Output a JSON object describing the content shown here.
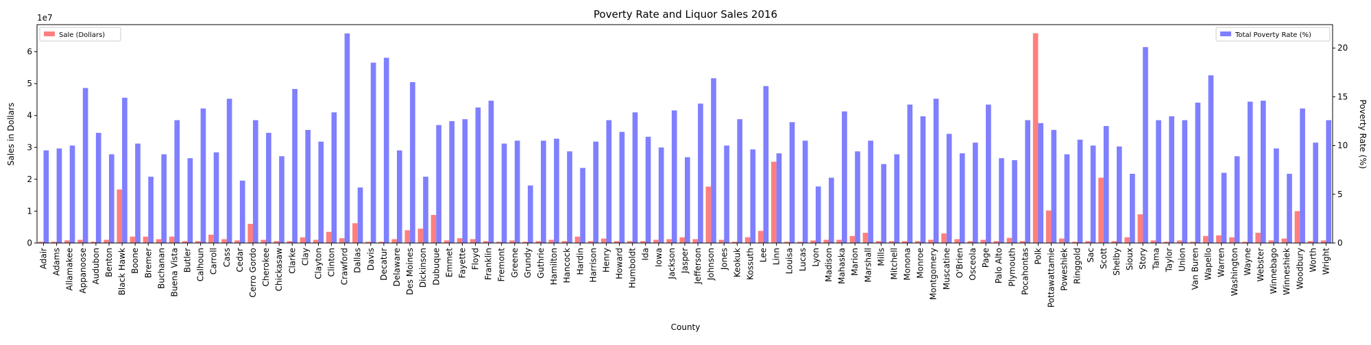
{
  "chart_data": {
    "type": "bar",
    "title": "Poverty Rate and Liquor Sales 2016",
    "xlabel": "County",
    "ylabel_left": "Sales in Dollars",
    "ylabel_right": "Poverty Rate (%)",
    "left_axis_exponent": "1e7",
    "ylim_left": [
      0,
      6.85
    ],
    "ylim_right": [
      0,
      22.4
    ],
    "yticks_left": [
      0,
      1,
      2,
      3,
      4,
      5,
      6
    ],
    "yticks_right": [
      0,
      5,
      10,
      15,
      20
    ],
    "grid": false,
    "legend_sales_position": "upper-left",
    "legend_poverty_position": "upper-right",
    "categories": [
      "Adair",
      "Adams",
      "Allamakee",
      "Appanoose",
      "Audubon",
      "Benton",
      "Black Hawk",
      "Boone",
      "Bremer",
      "Buchanan",
      "Buena Vista",
      "Butler",
      "Calhoun",
      "Carroll",
      "Cass",
      "Cedar",
      "Cerro Gordo",
      "Cherokee",
      "Chickasaw",
      "Clarke",
      "Clay",
      "Clayton",
      "Clinton",
      "Crawford",
      "Dallas",
      "Davis",
      "Decatur",
      "Delaware",
      "Des Moines",
      "Dickinson",
      "Dubuque",
      "Emmet",
      "Fayette",
      "Floyd",
      "Franklin",
      "Fremont",
      "Greene",
      "Grundy",
      "Guthrie",
      "Hamilton",
      "Hancock",
      "Hardin",
      "Harrison",
      "Henry",
      "Howard",
      "Humboldt",
      "Ida",
      "Iowa",
      "Jackson",
      "Jasper",
      "Jefferson",
      "Johnson",
      "Jones",
      "Keokuk",
      "Kossuth",
      "Lee",
      "Linn",
      "Louisa",
      "Lucas",
      "Lyon",
      "Madison",
      "Mahaska",
      "Marion",
      "Marshall",
      "Mills",
      "Mitchell",
      "Monona",
      "Monroe",
      "Montgomery",
      "Muscatine",
      "O'Brien",
      "Osceola",
      "Page",
      "Palo Alto",
      "Plymouth",
      "Pocahontas",
      "Polk",
      "Pottawattamie",
      "Poweshiek",
      "Ringgold",
      "Sac",
      "Scott",
      "Shelby",
      "Sioux",
      "Story",
      "Tama",
      "Taylor",
      "Union",
      "Van Buren",
      "Wapello",
      "Warren",
      "Washington",
      "Wayne",
      "Webster",
      "Winnebago",
      "Winneshiek",
      "Woodbury",
      "Worth",
      "Wright"
    ],
    "series": [
      {
        "name": "Sale (Dollars)",
        "color": "#ff7f7f",
        "axis": "left",
        "values": [
          0.04,
          0.04,
          0.08,
          0.1,
          0.04,
          0.1,
          1.68,
          0.2,
          0.2,
          0.12,
          0.2,
          0.06,
          0.06,
          0.26,
          0.12,
          0.08,
          0.6,
          0.1,
          0.06,
          0.06,
          0.18,
          0.1,
          0.35,
          0.15,
          0.62,
          0.04,
          0.04,
          0.12,
          0.4,
          0.45,
          0.88,
          0.08,
          0.15,
          0.12,
          0.06,
          0.04,
          0.08,
          0.04,
          0.06,
          0.1,
          0.06,
          0.2,
          0.06,
          0.14,
          0.06,
          0.06,
          0.06,
          0.1,
          0.12,
          0.18,
          0.12,
          1.77,
          0.1,
          0.04,
          0.18,
          0.38,
          2.55,
          0.04,
          0.04,
          0.08,
          0.1,
          0.1,
          0.22,
          0.32,
          0.06,
          0.06,
          0.06,
          0.06,
          0.1,
          0.3,
          0.12,
          0.06,
          0.1,
          0.06,
          0.16,
          0.06,
          6.58,
          1.02,
          0.14,
          0.04,
          0.06,
          2.05,
          0.06,
          0.18,
          0.9,
          0.08,
          0.04,
          0.08,
          0.04,
          0.22,
          0.24,
          0.18,
          0.04,
          0.32,
          0.08,
          0.14,
          1.0,
          0.06,
          0.08
        ]
      },
      {
        "name": "Total Poverty Rate (%)",
        "color": "#7f7fff",
        "axis": "right",
        "values": [
          9.5,
          9.7,
          10.0,
          15.9,
          11.3,
          9.1,
          14.9,
          10.2,
          6.8,
          9.1,
          12.6,
          8.7,
          13.8,
          9.3,
          14.8,
          6.4,
          12.6,
          11.3,
          8.9,
          15.8,
          11.6,
          10.4,
          13.4,
          21.5,
          5.7,
          18.5,
          19.0,
          9.5,
          16.5,
          6.8,
          12.1,
          12.5,
          12.7,
          13.9,
          14.6,
          10.2,
          10.5,
          5.9,
          10.5,
          10.7,
          9.4,
          7.7,
          10.4,
          12.6,
          11.4,
          13.4,
          10.9,
          9.8,
          13.6,
          8.8,
          14.3,
          16.9,
          10.0,
          12.7,
          9.6,
          16.1,
          9.2,
          12.4,
          10.5,
          5.8,
          6.7,
          13.5,
          9.4,
          10.5,
          8.1,
          9.1,
          14.2,
          13.0,
          14.8,
          11.2,
          9.2,
          10.3,
          14.2,
          8.7,
          8.5,
          12.6,
          12.3,
          11.6,
          9.1,
          10.6,
          10.0,
          12.0,
          9.9,
          7.1,
          20.1,
          12.6,
          13.0,
          12.6,
          14.4,
          17.2,
          7.2,
          8.9,
          14.5,
          14.6,
          9.7,
          7.1,
          13.8,
          10.3,
          12.6
        ]
      }
    ]
  }
}
